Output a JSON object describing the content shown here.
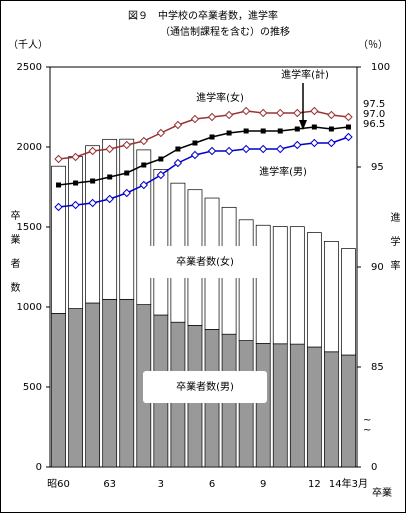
{
  "chart_data": {
    "type": "combo",
    "title": "図９　中学校の卒業者数，進学率",
    "subtitle": "（通信制課程を含む）の推移",
    "y_unit": "（千人）",
    "y2_unit": "（％）",
    "y_label": "卒業者数",
    "y2_label": "進学率",
    "x_unit": "卒業",
    "categories": [
      "昭60",
      null,
      null,
      "63",
      null,
      null,
      "3",
      null,
      null,
      "6",
      null,
      null,
      "9",
      null,
      null,
      "12",
      null,
      "14年3月"
    ],
    "ylim": [
      0,
      2500
    ],
    "yticks": [
      0,
      500,
      1000,
      1500,
      2000,
      2500
    ],
    "y2lim": [
      85,
      100
    ],
    "y2ticks": [
      0,
      85,
      90,
      95,
      100
    ],
    "y2_axis_break": true,
    "series": [
      {
        "name": "卒業者数(男)",
        "type": "bar",
        "color": "#999999",
        "values": [
          960,
          990,
          1025,
          1048,
          1048,
          1015,
          950,
          905,
          885,
          860,
          830,
          790,
          772,
          770,
          768,
          750,
          720,
          700
        ]
      },
      {
        "name": "卒業者数(女)",
        "type": "bar",
        "color": "#ffffff",
        "values": [
          920,
          950,
          983,
          1000,
          1001,
          967,
          910,
          869,
          848,
          821,
          793,
          755,
          739,
          733,
          734,
          715,
          690,
          665
        ]
      },
      {
        "name": "進学率(女)",
        "type": "line",
        "axis": "y2",
        "color": "#993333",
        "marker": "diamond",
        "values": [
          95.4,
          95.5,
          95.8,
          95.9,
          96.1,
          96.3,
          96.7,
          97.1,
          97.4,
          97.5,
          97.6,
          97.8,
          97.7,
          97.7,
          97.7,
          97.8,
          97.6,
          97.5
        ],
        "value_labels": [
          null,
          null,
          null,
          null,
          null,
          null,
          null,
          null,
          null,
          null,
          null,
          null,
          null,
          null,
          null,
          null,
          null,
          "97.5"
        ]
      },
      {
        "name": "進学率(計)",
        "type": "line",
        "axis": "y2",
        "color": "#000000",
        "marker": "square",
        "values": [
          94.1,
          94.2,
          94.3,
          94.5,
          94.7,
          95.1,
          95.4,
          95.9,
          96.2,
          96.5,
          96.7,
          96.8,
          96.8,
          96.8,
          96.9,
          97.0,
          96.9,
          97.0
        ],
        "value_labels": [
          null,
          null,
          null,
          null,
          null,
          null,
          null,
          null,
          null,
          null,
          null,
          null,
          null,
          null,
          null,
          null,
          null,
          "97.0"
        ]
      },
      {
        "name": "進学率(男)",
        "type": "line",
        "axis": "y2",
        "color": "#0000cc",
        "marker": "diamond",
        "values": [
          93.0,
          93.1,
          93.2,
          93.4,
          93.7,
          94.1,
          94.6,
          95.2,
          95.6,
          95.8,
          95.8,
          95.9,
          95.9,
          95.9,
          96.1,
          96.2,
          96.2,
          96.5
        ],
        "value_labels": [
          null,
          null,
          null,
          null,
          null,
          null,
          null,
          null,
          null,
          null,
          null,
          null,
          null,
          null,
          null,
          null,
          null,
          "96.5"
        ]
      }
    ]
  }
}
